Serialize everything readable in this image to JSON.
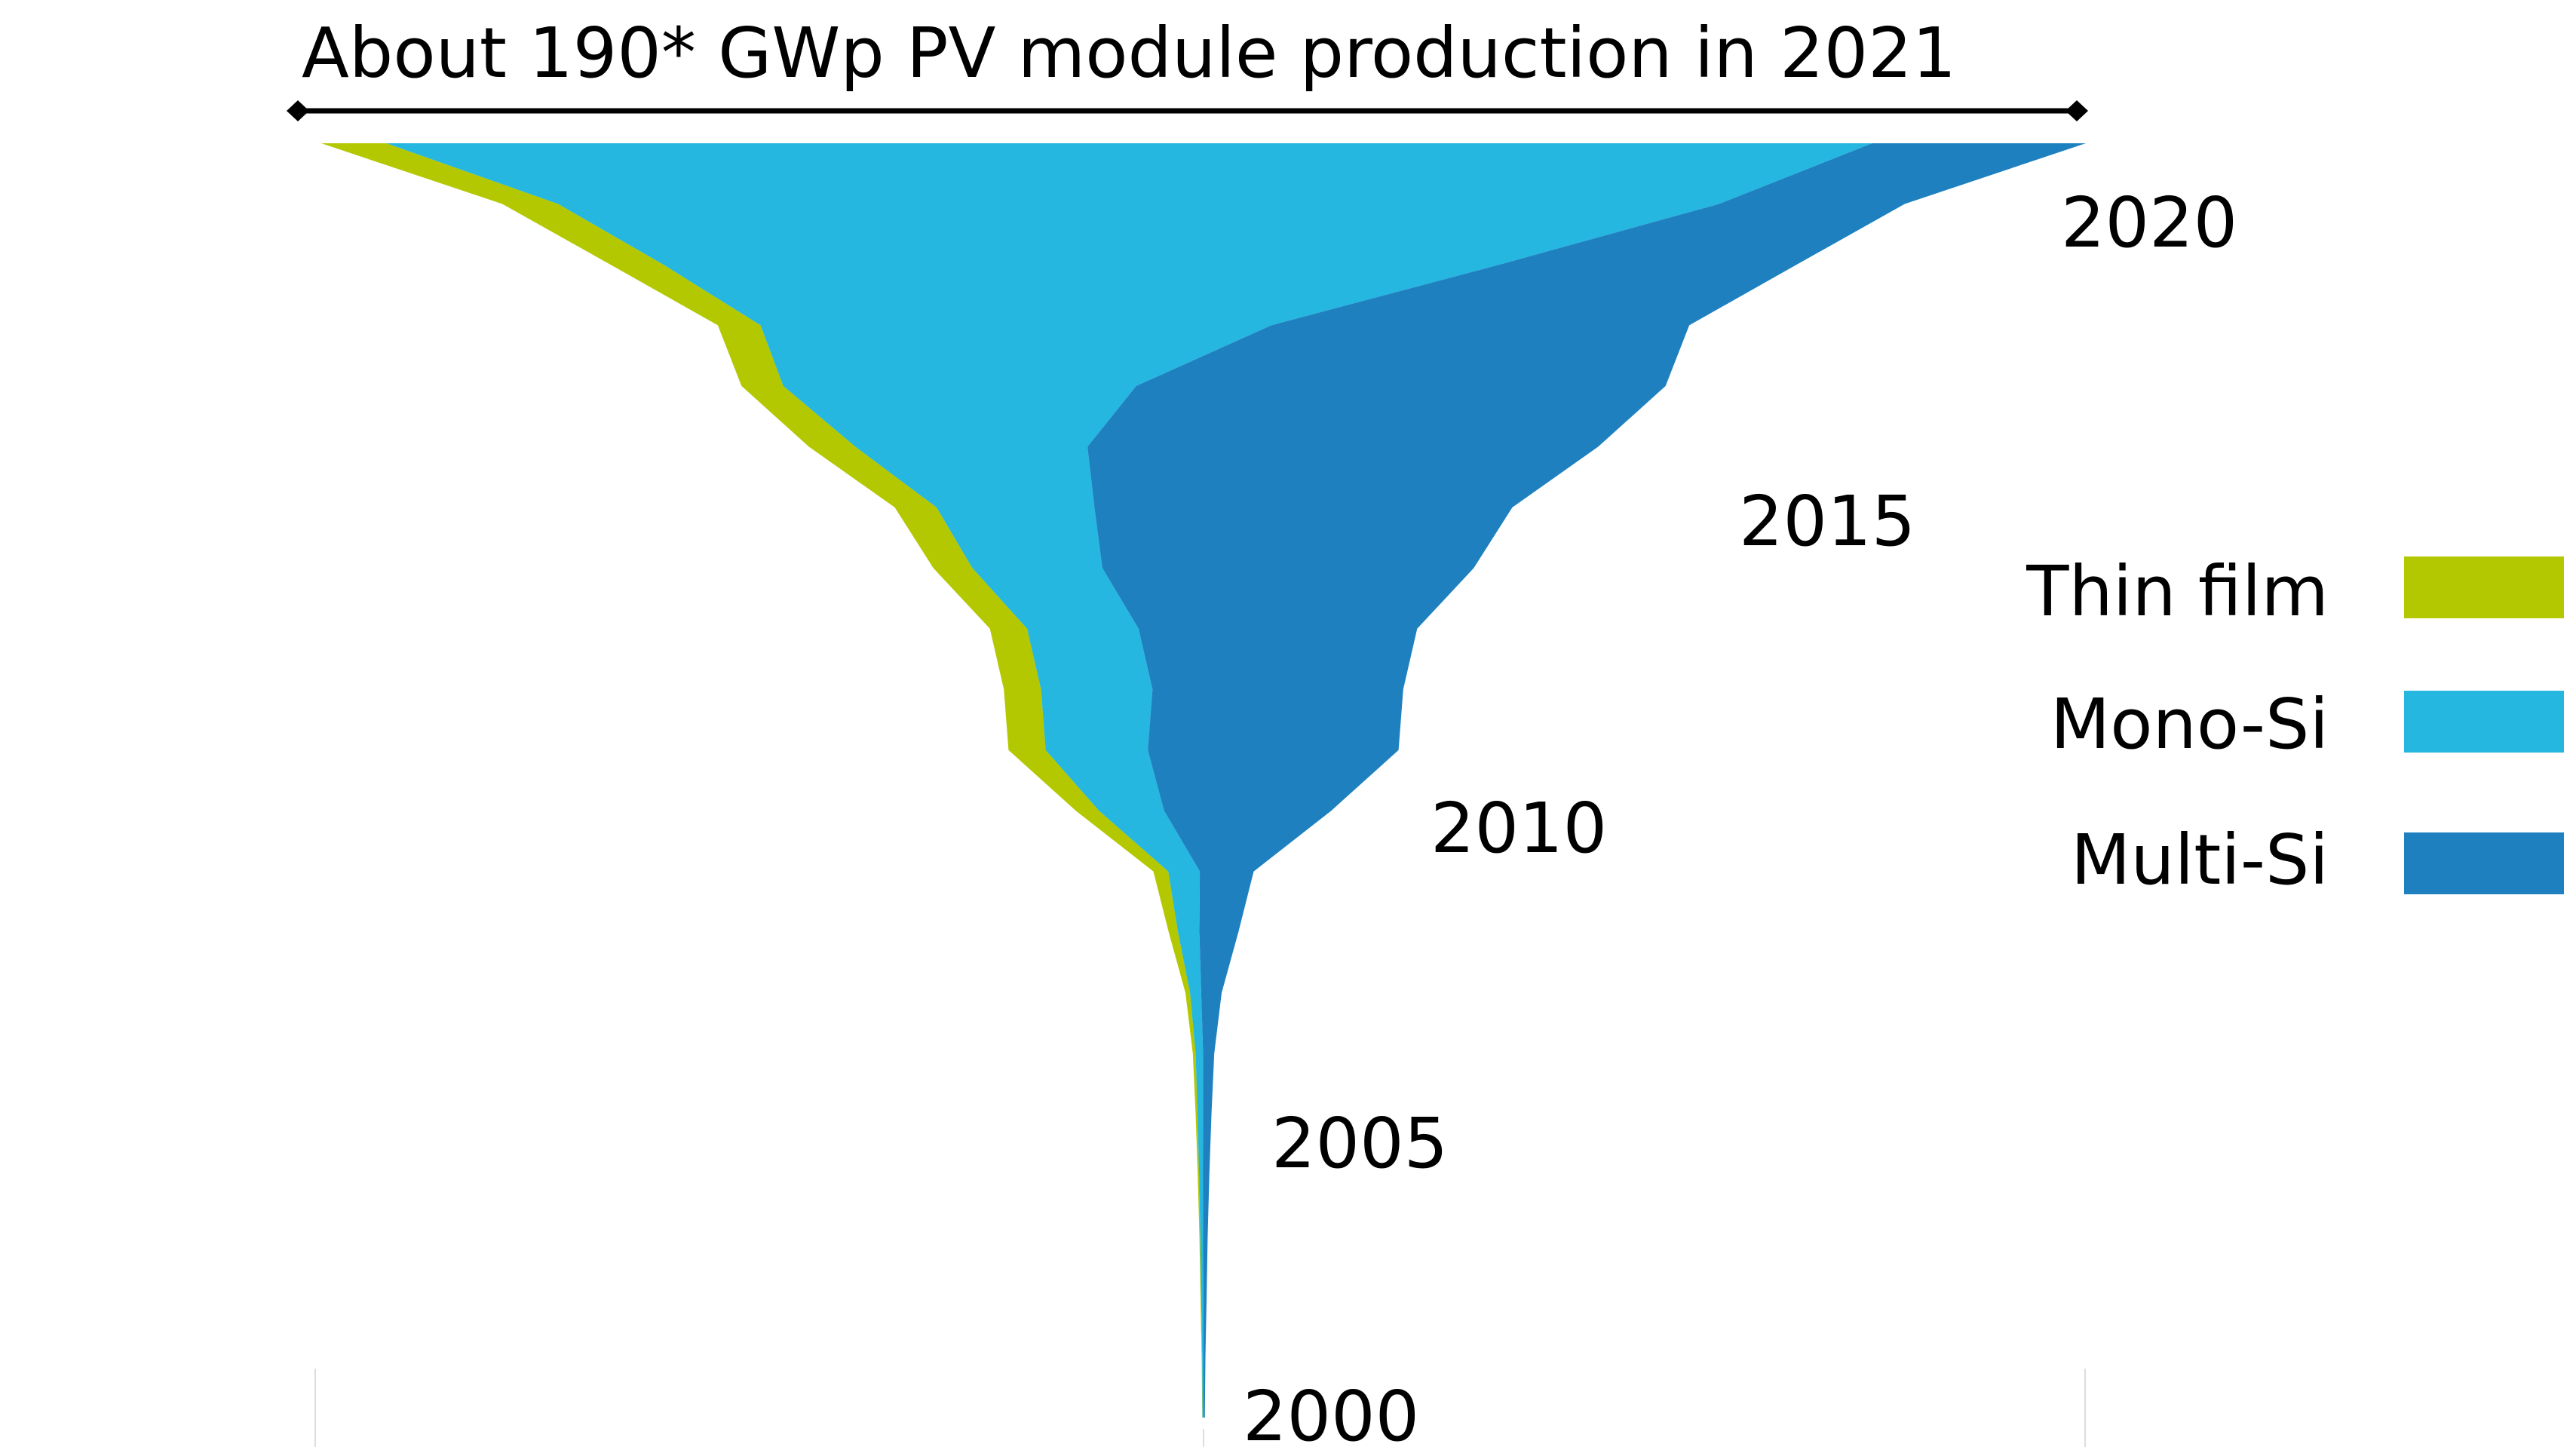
{
  "chart_data": {
    "type": "area",
    "layout": "centered stream (funnel), time axis vertical with 2000 at bottom and 2021 at top",
    "title": "About 190* GWp PV module production in 2021",
    "top_total_gwp": 190,
    "year_labels": [
      "2000",
      "2005",
      "2010",
      "2015",
      "2020"
    ],
    "legend_position": "right",
    "legend": [
      {
        "name": "Thin film",
        "color": "#b3c800"
      },
      {
        "name": "Mono-Si",
        "color": "#25b7e0"
      },
      {
        "name": "Multi-Si",
        "color": "#1f80c0"
      }
    ],
    "years": [
      2000,
      2001,
      2002,
      2003,
      2004,
      2005,
      2006,
      2007,
      2008,
      2009,
      2010,
      2011,
      2012,
      2013,
      2014,
      2015,
      2016,
      2017,
      2018,
      2019,
      2020,
      2021
    ],
    "series": [
      {
        "name": "Thin film",
        "values": [
          0.03,
          0.05,
          0.07,
          0.1,
          0.15,
          0.2,
          0.3,
          0.5,
          1.0,
          1.6,
          2.5,
          4.0,
          4.0,
          4.0,
          4.2,
          4.5,
          5.0,
          4.5,
          4.6,
          5.7,
          6.0,
          7.0
        ]
      },
      {
        "name": "Mono-Si",
        "values": [
          0.1,
          0.15,
          0.25,
          0.3,
          0.4,
          0.6,
          0.8,
          1.2,
          2.3,
          3.4,
          7.0,
          11.0,
          12.0,
          12.0,
          14.0,
          17.0,
          25.0,
          38.0,
          55.0,
          90.0,
          125.0,
          160.0
        ]
      },
      {
        "name": "Multi-Si",
        "values": [
          0.15,
          0.2,
          0.35,
          0.5,
          0.7,
          0.9,
          1.2,
          2.2,
          4.2,
          5.8,
          18.0,
          27.0,
          27.0,
          30.0,
          40.0,
          45.0,
          55.0,
          57.0,
          45.0,
          32.0,
          20.0,
          23.0
        ]
      }
    ]
  }
}
